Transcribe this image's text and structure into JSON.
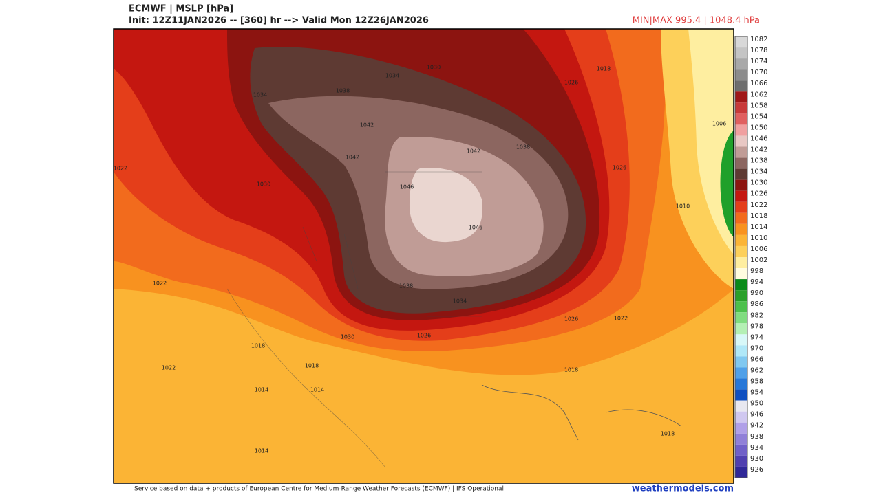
{
  "header": {
    "title": "ECMWF | MSLP [hPa]",
    "init": "Init: 12Z11JAN2026 -- [360] hr --> Valid Mon 12Z26JAN2026",
    "minmax": "MIN|MAX 995.4 | 1048.4 hPa"
  },
  "colorbar": {
    "levels": [
      1082,
      1078,
      1074,
      1070,
      1066,
      1062,
      1058,
      1054,
      1050,
      1046,
      1042,
      1038,
      1034,
      1030,
      1026,
      1022,
      1018,
      1014,
      1010,
      1006,
      1002,
      998,
      994,
      990,
      986,
      982,
      978,
      974,
      970,
      966,
      962,
      958,
      954,
      950,
      946,
      942,
      938,
      934,
      930,
      926
    ],
    "colors": [
      "#d8d8d8",
      "#c4c4c4",
      "#a8a8a8",
      "#8c8c8c",
      "#6e6e6e",
      "#a01818",
      "#c83a3a",
      "#e06060",
      "#f0a0a0",
      "#e8c8c4",
      "#c09c96",
      "#8c6660",
      "#5e3a33",
      "#8c1410",
      "#c41710",
      "#e43e1a",
      "#f26b1d",
      "#f8921f",
      "#fbb435",
      "#fdd05a",
      "#feeea0",
      "#fffce0",
      "#0a8a1a",
      "#2aa02a",
      "#4cc04c",
      "#80dc80",
      "#b4f0b4",
      "#d8f8f8",
      "#b0e8f8",
      "#80c8f0",
      "#50a0e8",
      "#2878d8",
      "#1050c0",
      "#e8e8f0",
      "#d0c8f0",
      "#b0a0e8",
      "#9080d8",
      "#7060c8",
      "#5040b0",
      "#302898"
    ]
  },
  "contour_labels": [
    1034,
    1038,
    1042,
    1042,
    1046,
    1046,
    1042,
    1038,
    1034,
    1034,
    1030,
    1030,
    1026,
    1026,
    1022,
    1022,
    1018,
    1018,
    1014,
    1014,
    1010,
    1006,
    1026,
    1022,
    1018,
    1030,
    1038,
    1022,
    1026,
    1018,
    1014,
    1018
  ],
  "footer": {
    "credit": "Service based on data + products of European Centre for Medium-Range Weather Forecasts (ECMWF) | IFS Operational",
    "site": "weathermodels.com"
  }
}
